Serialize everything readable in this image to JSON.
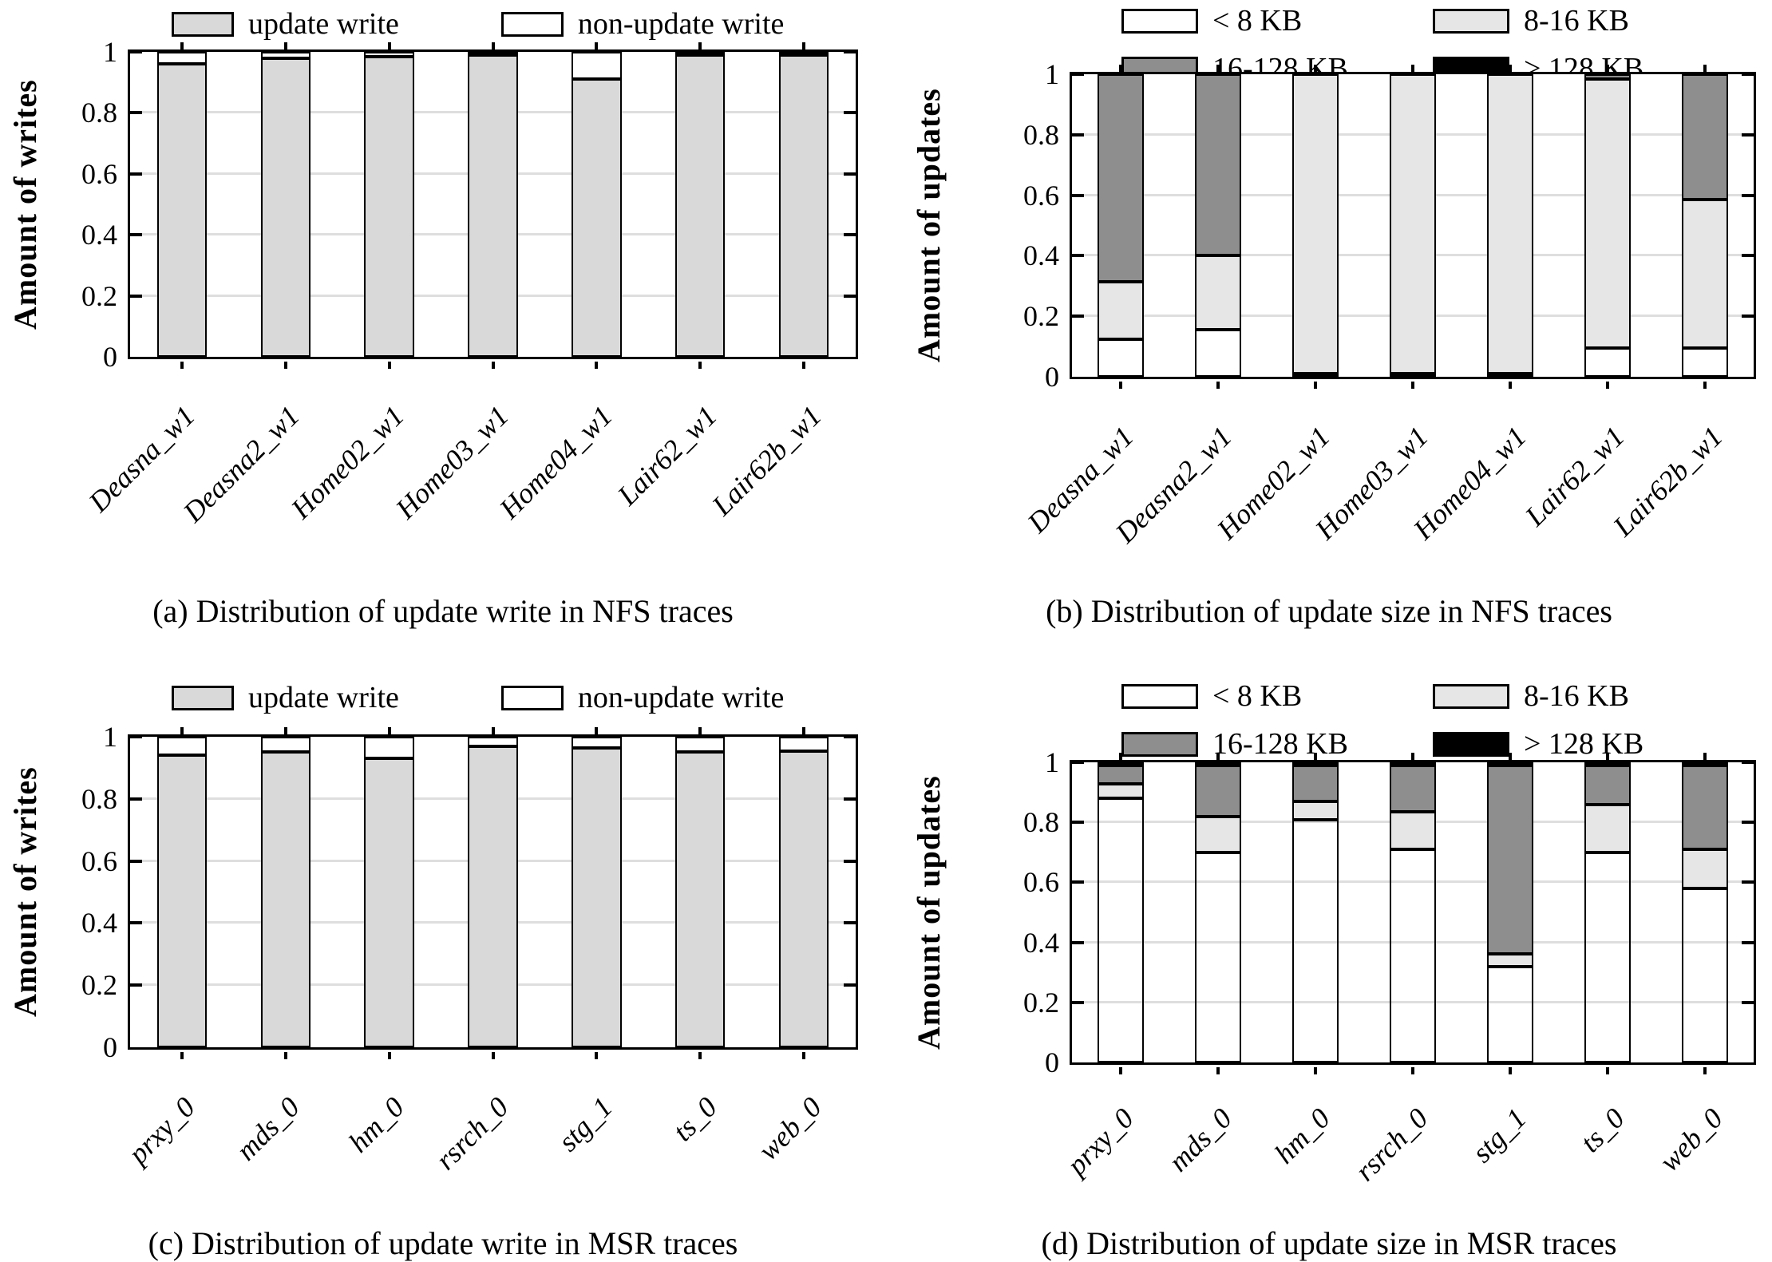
{
  "chart_data": [
    {
      "type": "bar",
      "stacked": true,
      "caption": "(a) Distribution of update write in NFS traces",
      "ylabel": "Amount of writes",
      "ylim": [
        0,
        1
      ],
      "yticks": [
        0,
        0.2,
        0.4,
        0.6,
        0.8,
        1
      ],
      "ytick_labels": [
        "0",
        "0.2",
        "0.4",
        "0.6",
        "0.8",
        "1"
      ],
      "grid": true,
      "legend_position": "top",
      "categories": [
        "Deasna_w1",
        "Deasna2_w1",
        "Home02_w1",
        "Home03_w1",
        "Home04_w1",
        "Lair62_w1",
        "Lair62b_w1"
      ],
      "series": [
        {
          "name": "update write",
          "color": "#d9d9d9",
          "values": [
            0.96,
            0.98,
            0.985,
            0.99,
            0.91,
            0.99,
            0.99
          ]
        },
        {
          "name": "non-update write",
          "color": "#ffffff",
          "values": [
            0.04,
            0.02,
            0.015,
            0.01,
            0.09,
            0.01,
            0.01
          ]
        }
      ]
    },
    {
      "type": "bar",
      "stacked": true,
      "caption": "(b) Distribution of update size in NFS traces",
      "ylabel": "Amount of updates",
      "ylim": [
        0,
        1
      ],
      "yticks": [
        0,
        0.2,
        0.4,
        0.6,
        0.8,
        1
      ],
      "ytick_labels": [
        "0",
        "0.2",
        "0.4",
        "0.6",
        "0.8",
        "1"
      ],
      "grid": true,
      "legend_position": "top",
      "categories": [
        "Deasna_w1",
        "Deasna2_w1",
        "Home02_w1",
        "Home03_w1",
        "Home04_w1",
        "Lair62_w1",
        "Lair62b_w1"
      ],
      "series": [
        {
          "name": "< 8 KB",
          "color": "#ffffff",
          "values": [
            0.125,
            0.155,
            0.005,
            0.005,
            0.005,
            0.095,
            0.095
          ]
        },
        {
          "name": "8-16 KB",
          "color": "#e6e6e6",
          "values": [
            0.19,
            0.245,
            0.995,
            0.995,
            0.995,
            0.89,
            0.49
          ]
        },
        {
          "name": "16-128 KB",
          "color": "#8e8e8e",
          "values": [
            0.685,
            0.6,
            0,
            0,
            0,
            0.015,
            0.415
          ]
        },
        {
          "name": "> 128 KB",
          "color": "#000000",
          "values": [
            0,
            0,
            0,
            0,
            0,
            0,
            0
          ]
        }
      ]
    },
    {
      "type": "bar",
      "stacked": true,
      "caption": "(c) Distribution of update write in MSR traces",
      "ylabel": "Amount of writes",
      "ylim": [
        0,
        1
      ],
      "yticks": [
        0,
        0.2,
        0.4,
        0.6,
        0.8,
        1
      ],
      "ytick_labels": [
        "0",
        "0.2",
        "0.4",
        "0.6",
        "0.8",
        "1"
      ],
      "grid": true,
      "legend_position": "top",
      "categories": [
        "prxy_0",
        "mds_0",
        "hm_0",
        "rsrch_0",
        "stg_1",
        "ts_0",
        "web_0"
      ],
      "series": [
        {
          "name": "update write",
          "color": "#d9d9d9",
          "values": [
            0.94,
            0.95,
            0.93,
            0.97,
            0.965,
            0.95,
            0.955
          ]
        },
        {
          "name": "non-update write",
          "color": "#ffffff",
          "values": [
            0.06,
            0.05,
            0.07,
            0.03,
            0.035,
            0.05,
            0.045
          ]
        }
      ]
    },
    {
      "type": "bar",
      "stacked": true,
      "caption": "(d) Distribution of update size in MSR traces",
      "ylabel": "Amount of updates",
      "ylim": [
        0,
        1
      ],
      "yticks": [
        0,
        0.2,
        0.4,
        0.6,
        0.8,
        1
      ],
      "ytick_labels": [
        "0",
        "0.2",
        "0.4",
        "0.6",
        "0.8",
        "1"
      ],
      "grid": true,
      "legend_position": "top",
      "categories": [
        "prxy_0",
        "mds_0",
        "hm_0",
        "rsrch_0",
        "stg_1",
        "ts_0",
        "web_0"
      ],
      "series": [
        {
          "name": "< 8 KB",
          "color": "#ffffff",
          "values": [
            0.88,
            0.7,
            0.81,
            0.71,
            0.32,
            0.7,
            0.58
          ]
        },
        {
          "name": "8-16 KB",
          "color": "#e6e6e6",
          "values": [
            0.05,
            0.12,
            0.06,
            0.125,
            0.045,
            0.16,
            0.13
          ]
        },
        {
          "name": "16-128 KB",
          "color": "#8e8e8e",
          "values": [
            0.06,
            0.17,
            0.12,
            0.155,
            0.63,
            0.13,
            0.28
          ]
        },
        {
          "name": "> 128 KB",
          "color": "#000000",
          "values": [
            0.01,
            0.01,
            0.01,
            0.01,
            0.005,
            0.01,
            0.01
          ]
        }
      ]
    }
  ]
}
